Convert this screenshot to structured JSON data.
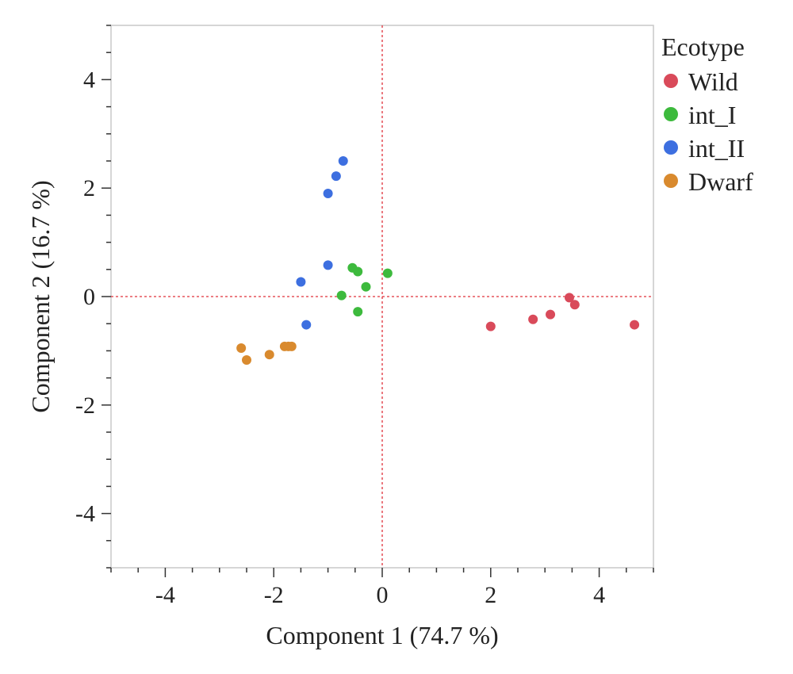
{
  "chart_data": {
    "type": "scatter",
    "xlabel": "Component 1  (74.7 %)",
    "ylabel": "Component 2  (16.7 %)",
    "xlim": [
      -5,
      5
    ],
    "ylim": [
      -5,
      5
    ],
    "x_ticks": [
      -4,
      -2,
      0,
      2,
      4
    ],
    "y_ticks": [
      -4,
      -2,
      0,
      2,
      4
    ],
    "reference_lines": {
      "x": 0,
      "y": 0,
      "style": "dashed",
      "color": "#e0303a"
    },
    "grid": false,
    "legend": {
      "title": "Ecotype",
      "placement": "right"
    },
    "series": [
      {
        "name": "Wild",
        "color": "#d94a5a",
        "points": [
          {
            "x": 2.0,
            "y": -0.55
          },
          {
            "x": 2.78,
            "y": -0.42
          },
          {
            "x": 3.1,
            "y": -0.33
          },
          {
            "x": 3.45,
            "y": -0.02
          },
          {
            "x": 3.55,
            "y": -0.15
          },
          {
            "x": 4.65,
            "y": -0.52
          }
        ]
      },
      {
        "name": "int_I",
        "color": "#3dba3d",
        "points": [
          {
            "x": -0.55,
            "y": 0.53
          },
          {
            "x": -0.45,
            "y": 0.46
          },
          {
            "x": 0.1,
            "y": 0.43
          },
          {
            "x": -0.3,
            "y": 0.18
          },
          {
            "x": -0.75,
            "y": 0.02
          },
          {
            "x": -0.45,
            "y": -0.28
          }
        ]
      },
      {
        "name": "int_II",
        "color": "#3d6fe0",
        "points": [
          {
            "x": -0.72,
            "y": 2.5
          },
          {
            "x": -0.85,
            "y": 2.22
          },
          {
            "x": -1.0,
            "y": 1.9
          },
          {
            "x": -1.0,
            "y": 0.58
          },
          {
            "x": -1.5,
            "y": 0.27
          },
          {
            "x": -1.4,
            "y": -0.52
          }
        ]
      },
      {
        "name": "Dwarf",
        "color": "#d98a2e",
        "points": [
          {
            "x": -2.6,
            "y": -0.95
          },
          {
            "x": -2.5,
            "y": -1.17
          },
          {
            "x": -2.08,
            "y": -1.07
          },
          {
            "x": -1.8,
            "y": -0.92
          },
          {
            "x": -1.73,
            "y": -0.92
          },
          {
            "x": -1.67,
            "y": -0.92
          }
        ]
      }
    ]
  }
}
